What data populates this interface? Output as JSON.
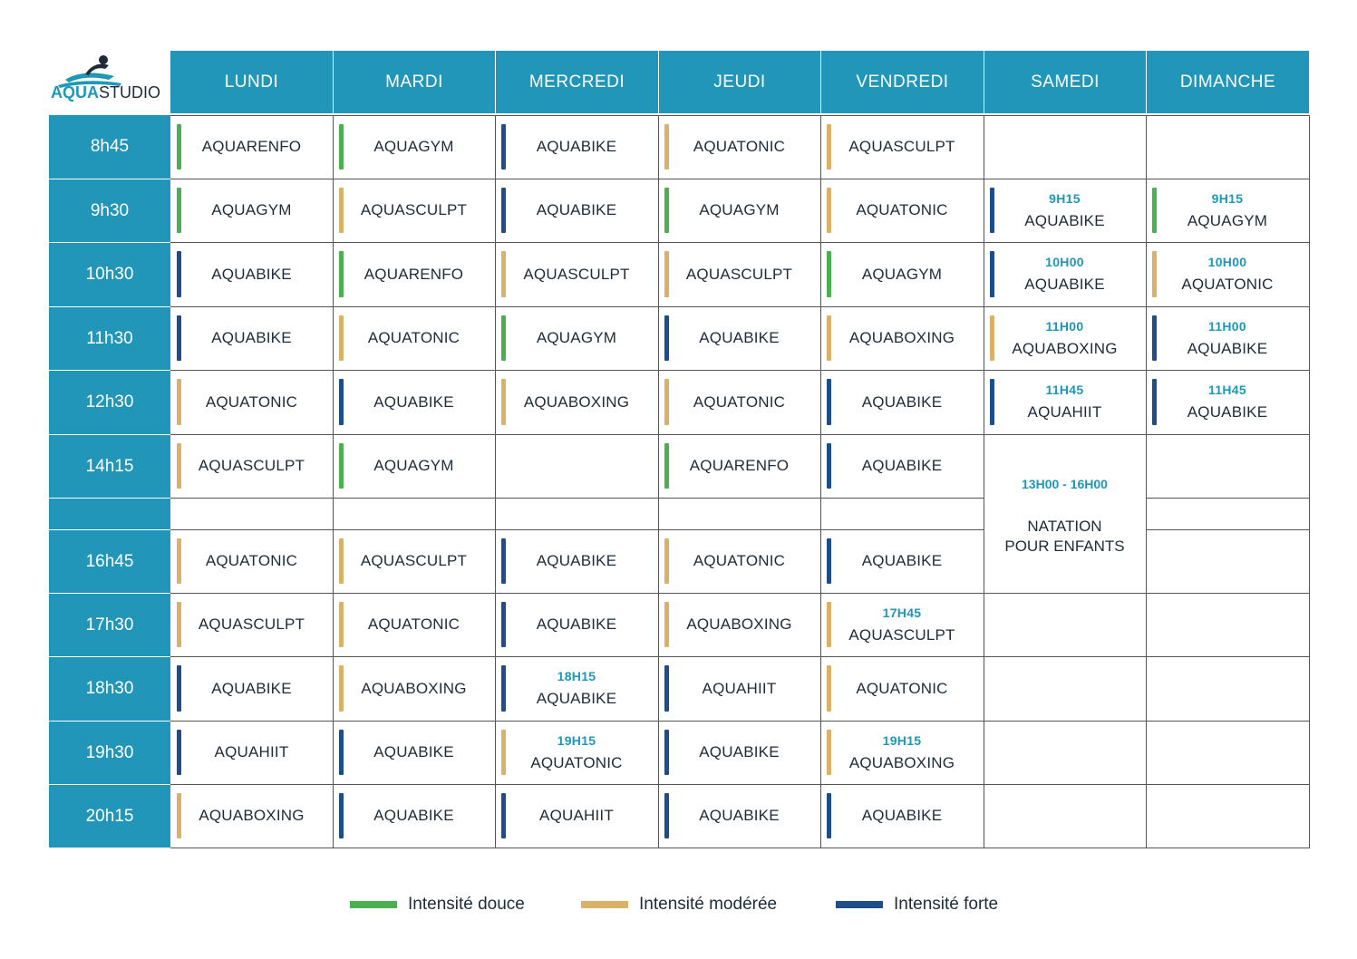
{
  "logo": {
    "word1": "AQUA",
    "word2": "STUDIO"
  },
  "colors": {
    "douce": "#4caf50",
    "moderee": "#d9b168",
    "forte": "#1d4e89",
    "header": "#2196b8",
    "time_accent": "#1f97b6"
  },
  "days": [
    "LUNDI",
    "MARDI",
    "MERCREDI",
    "JEUDI",
    "VENDREDI",
    "SAMEDI",
    "DIMANCHE"
  ],
  "rows": [
    {
      "time": "8h45",
      "cells": [
        {
          "name": "AQUARENFO",
          "level": "douce"
        },
        {
          "name": "AQUAGYM",
          "level": "douce"
        },
        {
          "name": "AQUABIKE",
          "level": "forte"
        },
        {
          "name": "AQUATONIC",
          "level": "moderee"
        },
        {
          "name": "AQUASCULPT",
          "level": "moderee"
        },
        null,
        null
      ]
    },
    {
      "time": "9h30",
      "cells": [
        {
          "name": "AQUAGYM",
          "level": "douce"
        },
        {
          "name": "AQUASCULPT",
          "level": "moderee"
        },
        {
          "name": "AQUABIKE",
          "level": "forte"
        },
        {
          "name": "AQUAGYM",
          "level": "douce"
        },
        {
          "name": "AQUATONIC",
          "level": "moderee"
        },
        {
          "time": "9H15",
          "name": "AQUABIKE",
          "level": "forte"
        },
        {
          "time": "9H15",
          "name": "AQUAGYM",
          "level": "douce"
        }
      ]
    },
    {
      "time": "10h30",
      "cells": [
        {
          "name": "AQUABIKE",
          "level": "forte"
        },
        {
          "name": "AQUARENFO",
          "level": "douce"
        },
        {
          "name": "AQUASCULPT",
          "level": "moderee"
        },
        {
          "name": "AQUASCULPT",
          "level": "moderee"
        },
        {
          "name": "AQUAGYM",
          "level": "douce"
        },
        {
          "time": "10H00",
          "name": "AQUABIKE",
          "level": "forte"
        },
        {
          "time": "10H00",
          "name": "AQUATONIC",
          "level": "moderee"
        }
      ]
    },
    {
      "time": "11h30",
      "cells": [
        {
          "name": "AQUABIKE",
          "level": "forte"
        },
        {
          "name": "AQUATONIC",
          "level": "moderee"
        },
        {
          "name": "AQUAGYM",
          "level": "douce"
        },
        {
          "name": "AQUABIKE",
          "level": "forte"
        },
        {
          "name": "AQUABOXING",
          "level": "moderee"
        },
        {
          "time": "11H00",
          "name": "AQUABOXING",
          "level": "moderee"
        },
        {
          "time": "11H00",
          "name": "AQUABIKE",
          "level": "forte"
        }
      ]
    },
    {
      "time": "12h30",
      "cells": [
        {
          "name": "AQUATONIC",
          "level": "moderee"
        },
        {
          "name": "AQUABIKE",
          "level": "forte"
        },
        {
          "name": "AQUABOXING",
          "level": "moderee"
        },
        {
          "name": "AQUATONIC",
          "level": "moderee"
        },
        {
          "name": "AQUABIKE",
          "level": "forte"
        },
        {
          "time": "11H45",
          "name": "AQUAHIIT",
          "level": "forte"
        },
        {
          "time": "11H45",
          "name": "AQUABIKE",
          "level": "forte"
        }
      ]
    },
    {
      "time": "14h15",
      "cells": [
        {
          "name": "AQUASCULPT",
          "level": "moderee"
        },
        {
          "name": "AQUAGYM",
          "level": "douce"
        },
        null,
        {
          "name": "AQUARENFO",
          "level": "douce"
        },
        {
          "name": "AQUABIKE",
          "level": "forte"
        },
        "merged",
        null
      ]
    },
    {
      "time": "",
      "cells": [
        null,
        null,
        null,
        null,
        null,
        "merged",
        null
      ]
    },
    {
      "time": "16h45",
      "cells": [
        {
          "name": "AQUATONIC",
          "level": "moderee"
        },
        {
          "name": "AQUASCULPT",
          "level": "moderee"
        },
        {
          "name": "AQUABIKE",
          "level": "forte"
        },
        {
          "name": "AQUATONIC",
          "level": "moderee"
        },
        {
          "name": "AQUABIKE",
          "level": "forte"
        },
        "merged",
        null
      ]
    },
    {
      "time": "17h30",
      "cells": [
        {
          "name": "AQUASCULPT",
          "level": "moderee"
        },
        {
          "name": "AQUATONIC",
          "level": "moderee"
        },
        {
          "name": "AQUABIKE",
          "level": "forte"
        },
        {
          "name": "AQUABOXING",
          "level": "moderee"
        },
        {
          "time": "17H45",
          "name": "AQUASCULPT",
          "level": "moderee"
        },
        null,
        null
      ]
    },
    {
      "time": "18h30",
      "cells": [
        {
          "name": "AQUABIKE",
          "level": "forte"
        },
        {
          "name": "AQUABOXING",
          "level": "moderee"
        },
        {
          "time": "18H15",
          "name": "AQUABIKE",
          "level": "forte"
        },
        {
          "name": "AQUAHIIT",
          "level": "forte"
        },
        {
          "name": "AQUATONIC",
          "level": "moderee"
        },
        null,
        null
      ]
    },
    {
      "time": "19h30",
      "cells": [
        {
          "name": "AQUAHIIT",
          "level": "forte"
        },
        {
          "name": "AQUABIKE",
          "level": "forte"
        },
        {
          "time": "19H15",
          "name": "AQUATONIC",
          "level": "moderee"
        },
        {
          "name": "AQUABIKE",
          "level": "forte"
        },
        {
          "time": "19H15",
          "name": "AQUABOXING",
          "level": "moderee"
        },
        null,
        null
      ]
    },
    {
      "time": "20h15",
      "cells": [
        {
          "name": "AQUABOXING",
          "level": "moderee"
        },
        {
          "name": "AQUABIKE",
          "level": "forte"
        },
        {
          "name": "AQUAHIIT",
          "level": "forte"
        },
        {
          "name": "AQUABIKE",
          "level": "forte"
        },
        {
          "name": "AQUABIKE",
          "level": "forte"
        },
        null,
        null
      ]
    }
  ],
  "natation": {
    "time": "13H00 - 16H00",
    "line1": "NATATION",
    "line2": "POUR ENFANTS"
  },
  "legend": [
    {
      "label": "Intensité douce",
      "level": "douce"
    },
    {
      "label": "Intensité modérée",
      "level": "moderee"
    },
    {
      "label": "Intensité forte",
      "level": "forte"
    }
  ]
}
